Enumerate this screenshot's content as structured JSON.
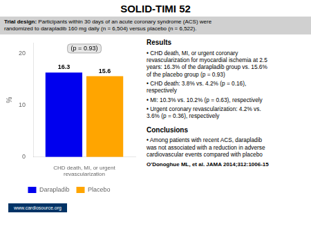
{
  "chart_data": {
    "type": "bar",
    "title": "SOLID-TIMI 52",
    "categories": [
      "CHD death, MI, or urgent\nrevascularization"
    ],
    "series": [
      {
        "name": "Darapladib",
        "color": "#0000ee",
        "values": [
          16.3
        ]
      },
      {
        "name": "Placebo",
        "color": "#FFA500",
        "values": [
          15.6
        ]
      }
    ],
    "ylabel": "%",
    "ylim": [
      0,
      22
    ],
    "yticks": [
      0,
      10,
      20
    ],
    "grid": false,
    "legend": "bottom",
    "data_labels": true,
    "annotations": [
      "(p = 0.93)",
      "Trial design:",
      " Participants within 30 days of an acute coronary syndrome (ACS) were\nrandomized to darapladib 160 mg daily (n = 6,504) versus placebo (n = 6,522).",
      "Results",
      "• CHD death, MI, or urgent coronary\nrevascularization for myocardial ischemia at 2.5\nyears: 16.3% of the darapladib group vs. 15.6%\nof the placebo group (p = 0.93)",
      "• CHD death: 3.8% vs. 4.2% (p = 0.16),\nrespectively",
      "• MI: 10.3% vs. 10.2% (p = 0.63), respectively",
      "• Urgent coronary revascularization: 4.2% vs.\n3.6% (p = 0.36), respectively",
      "Conclusions",
      "• Among patients with recent ACS, darapladib\nwas not associated with a reduction in adverse\ncardiovascular events compared with placebo",
      "O'Donoghue ML, et al. JAMA 2014;312:1006-15",
      "www.cardiosource.org"
    ]
  }
}
